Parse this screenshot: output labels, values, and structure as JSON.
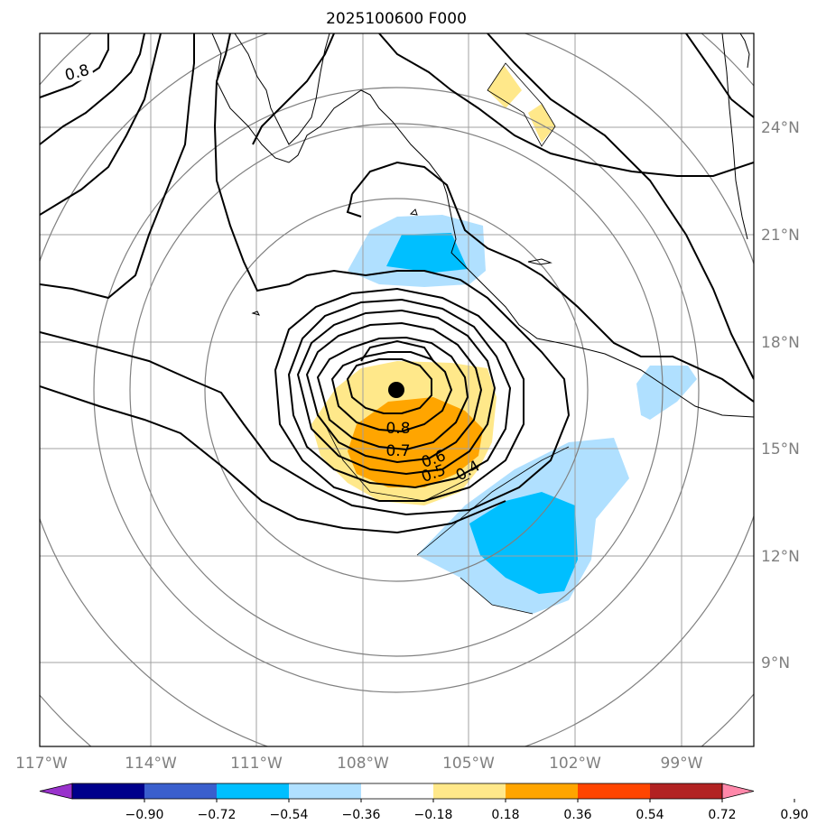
{
  "title": "2025100600 F000",
  "lat_labels": [
    "24°N",
    "21°N",
    "18°N",
    "15°N",
    "12°N",
    "9°N"
  ],
  "lon_labels": [
    "117°W",
    "114°W",
    "111°W",
    "108°W",
    "105°W",
    "102°W",
    "99°W"
  ],
  "colorbar": {
    "tick_labels": [
      "−0.90",
      "−0.72",
      "−0.54",
      "−0.36",
      "−0.18",
      "0.18",
      "0.36",
      "0.54",
      "0.72",
      "0.90"
    ],
    "colors": [
      "#9932cc",
      "#00008b",
      "#3a5fcd",
      "#00bfff",
      "#b0e0ff",
      "#ffffff",
      "#ffe88a",
      "#ffa500",
      "#ff4500",
      "#b22222",
      "#ff88aa"
    ]
  },
  "contour_labels": [
    "0.8",
    "0.8",
    "0.7",
    "0.6",
    "0.5",
    "0.4"
  ],
  "storm_center": {
    "lat": 16.7,
    "lon": -106.9
  },
  "colors": {
    "grid": "#a0a0a0",
    "range_rings": "#808080",
    "coast": "#000000",
    "positive_light": "#ffe88a",
    "positive_mid": "#ffa500",
    "negative_light": "#b0e0ff",
    "negative_mid": "#00bfff"
  }
}
